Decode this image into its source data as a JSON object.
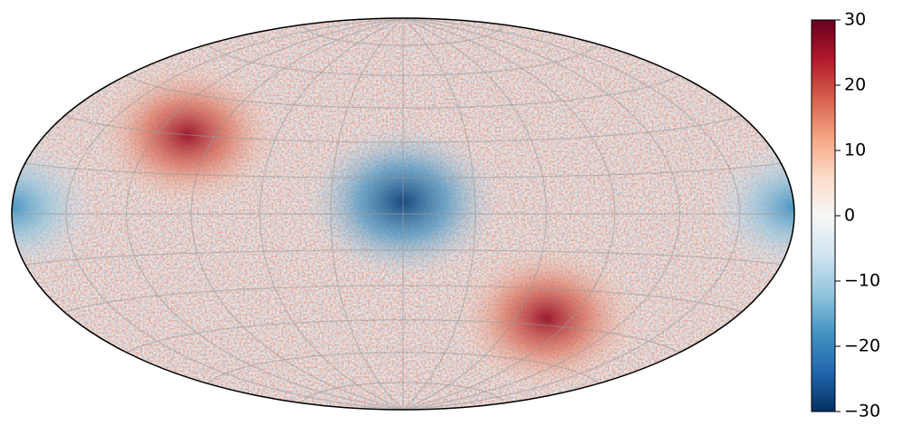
{
  "chart_data": {
    "type": "skymap",
    "projection": "hammer",
    "grid": true,
    "colors": [
      "#053061",
      "#2166ac",
      "#4393c3",
      "#92c5de",
      "#d1e5f0",
      "#f7f7f7",
      "#fddbc7",
      "#f4a582",
      "#d6604d",
      "#b2182b",
      "#67001f"
    ],
    "clim": [
      -30,
      30
    ],
    "cticks": [
      -30,
      -20,
      -10,
      0,
      10,
      20,
      30
    ],
    "spots": [
      {
        "lon": 0,
        "lat": 5,
        "radius": 32,
        "value": -28
      },
      {
        "lon": -104,
        "lat": 30,
        "radius": 30,
        "value": 26
      },
      {
        "lon": 77,
        "lat": -42,
        "radius": 30,
        "value": 26
      },
      {
        "lon": 180,
        "lat": 2,
        "radius": 28,
        "value": -18
      }
    ]
  }
}
